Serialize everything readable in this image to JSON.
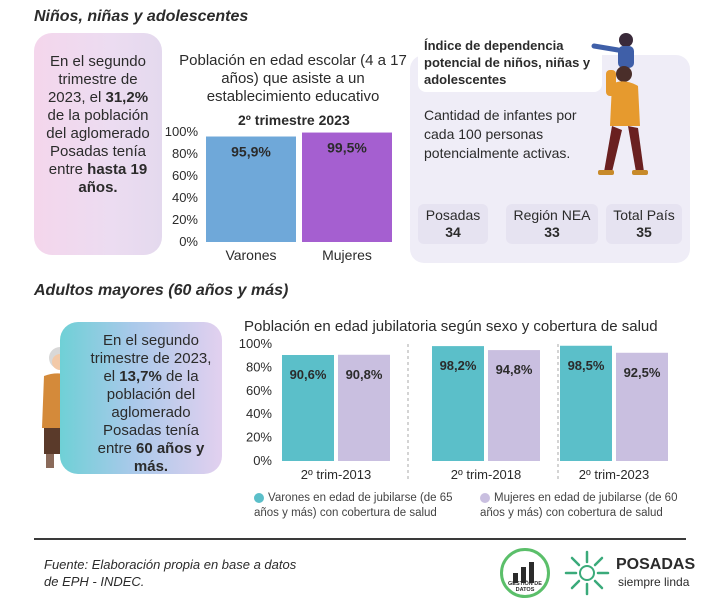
{
  "sections": {
    "youth_title": "Niños, niñas y adolescentes",
    "elderly_title": "Adultos mayores (60 años y más)"
  },
  "youth_note": {
    "pre": "En el segundo trimestre de 2023, el ",
    "pct": "31,2%",
    "mid": " de la población del aglomerado Posadas tenía entre ",
    "bold": "hasta 19 años."
  },
  "elderly_note": {
    "pre": "En el segundo trimestre de 2023, el ",
    "pct": "13,7%",
    "mid": " de la población del aglomerado Posadas tenía entre ",
    "bold": "60 años y más."
  },
  "dependency": {
    "title": "Índice de dependencia potencial de niños, niñas y adolescentes",
    "description": "Cantidad de infantes por cada 100 personas potencialmente activas.",
    "items": [
      {
        "label": "Posadas",
        "value": "34"
      },
      {
        "label": "Región NEA",
        "value": "33"
      },
      {
        "label": "Total País",
        "value": "35"
      }
    ]
  },
  "chart_data": [
    {
      "type": "bar",
      "title": "Población en edad escolar (4 a 17 años) que asiste a un establecimiento educativo",
      "subtitle": "2º trimestre 2023",
      "categories": [
        "Varones",
        "Mujeres"
      ],
      "values": [
        95.9,
        99.5
      ],
      "value_labels": [
        "95,9%",
        "99,5%"
      ],
      "colors": [
        "#6fa8d9",
        "#a55fd0"
      ],
      "ylim": [
        0,
        100
      ],
      "yticks": [
        "0%",
        "20%",
        "40%",
        "60%",
        "80%",
        "100%"
      ]
    },
    {
      "type": "bar",
      "title": "Población en edad jubilatoria según sexo y cobertura de salud",
      "categories": [
        "2º trim-2013",
        "2º trim-2018",
        "2º trim-2023"
      ],
      "series": [
        {
          "name": "Varones en edad de jubilarse (de 65 años y más) con cobertura de salud",
          "values": [
            90.6,
            98.2,
            98.5
          ],
          "labels": [
            "90,6%",
            "98,2%",
            "98,5%"
          ],
          "color": "#5bbfc9"
        },
        {
          "name": "Mujeres en edad de jubilarse (de 60 años y más) con cobertura de salud",
          "values": [
            90.8,
            94.8,
            92.5
          ],
          "labels": [
            "90,8%",
            "94,8%",
            "92,5%"
          ],
          "color": "#c9bfe0"
        }
      ],
      "ylim": [
        0,
        100
      ],
      "yticks": [
        "0%",
        "20%",
        "40%",
        "60%",
        "80%",
        "100%"
      ],
      "legend": "bottom"
    }
  ],
  "footer": {
    "source": "Fuente: Elaboración propia en base a datos de EPH - INDEC.",
    "logo1_text": "GESTIÓN DE DATOS",
    "logo2_title": "POSADAS",
    "logo2_sub": "siempre linda"
  },
  "colors": {
    "accent_purple": "#7a2f8f",
    "teal": "#5bbfc9",
    "lilac": "#c9bfe0"
  }
}
